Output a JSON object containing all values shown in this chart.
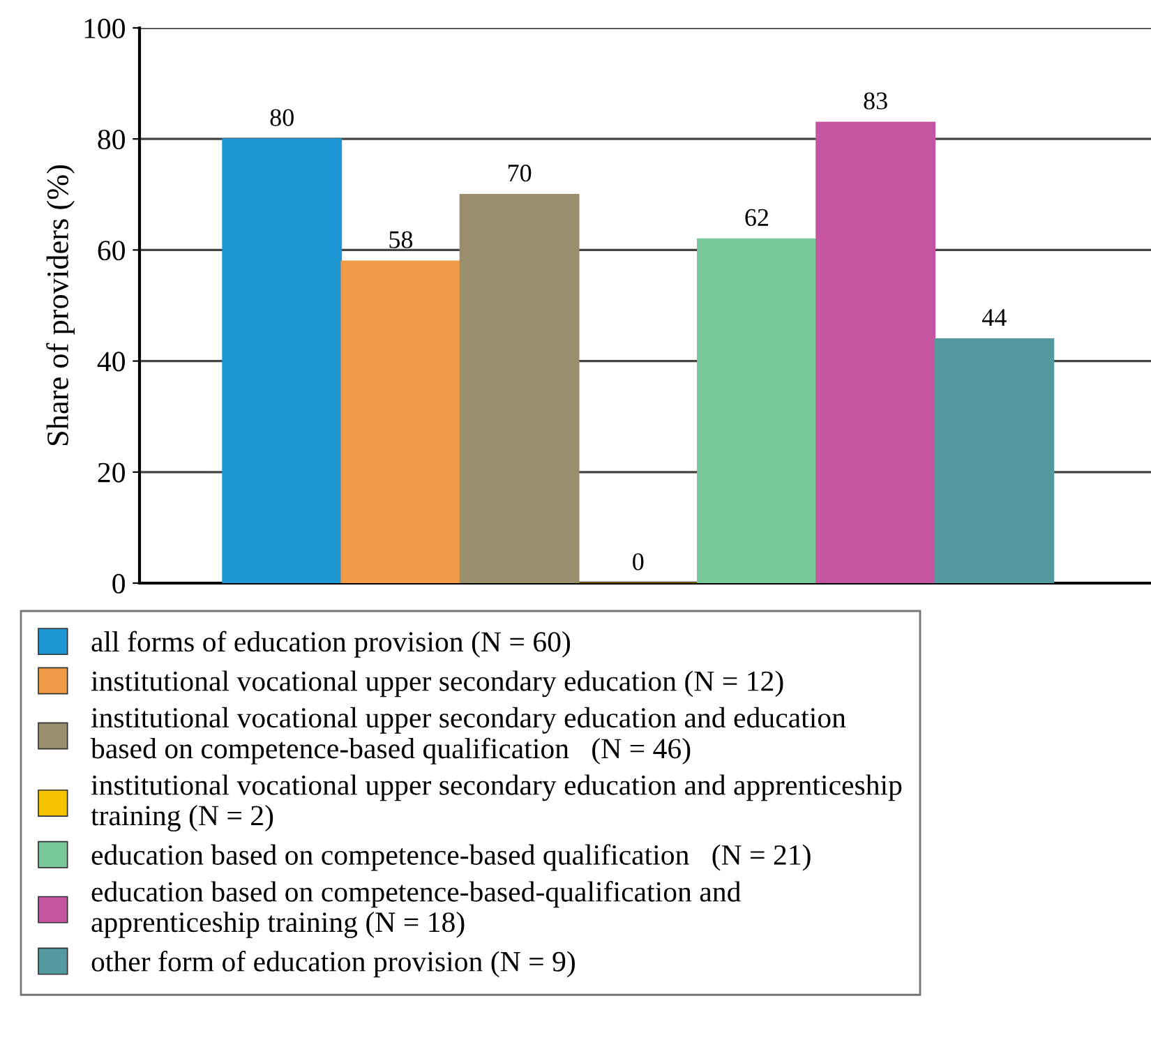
{
  "chart_data": {
    "type": "bar",
    "ylabel": "Share of providers (%)",
    "categories": [
      null
    ],
    "series": [
      {
        "name": "all forms of education provision (N = 60)",
        "color": "#1f96d4",
        "values": [
          80
        ]
      },
      {
        "name": "institutional vocational upper secondary education (N = 12)",
        "color": "#f09a45",
        "values": [
          58
        ]
      },
      {
        "name": "institutional vocational upper secondary education and education\nbased on competence-based qualification   (N = 46)",
        "color": "#9a8f6c",
        "values": [
          70
        ]
      },
      {
        "name": "institutional vocational upper secondary education and apprenticeship\ntraining (N = 2)",
        "color": "#f5c200",
        "values": [
          0
        ]
      },
      {
        "name": "education based on competence-based qualification   (N = 21)",
        "color": "#78c89a",
        "values": [
          62
        ]
      },
      {
        "name": "education based on competence-based-qualification and\napprenticeship training (N = 18)",
        "color": "#c555a0",
        "values": [
          83
        ]
      },
      {
        "name": "other form of education provision (N = 9)",
        "color": "#5599a0",
        "values": [
          44
        ]
      }
    ],
    "ylim": [
      0,
      100
    ],
    "yticks": [
      0,
      20,
      40,
      60,
      80,
      100
    ],
    "grid": "y",
    "data_labels": true,
    "legend": "bottom"
  }
}
